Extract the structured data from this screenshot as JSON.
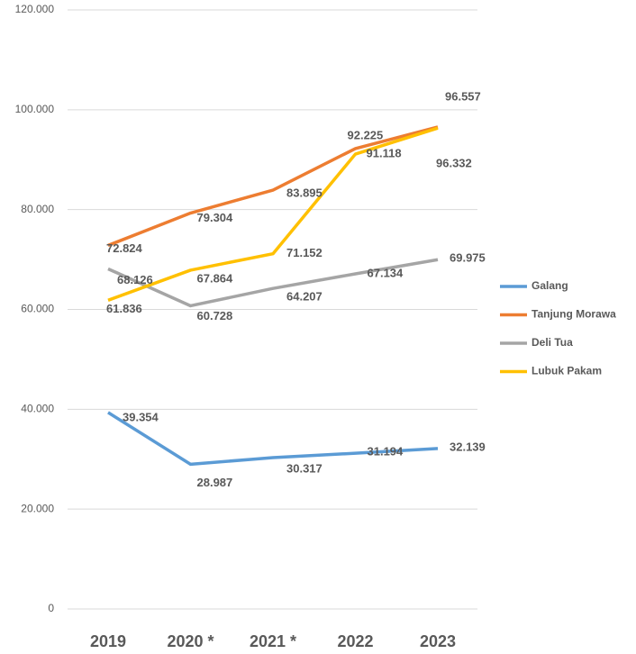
{
  "chart_data": {
    "type": "line",
    "categories": [
      "2019",
      "2020 *",
      "2021 *",
      "2022",
      "2023"
    ],
    "series": [
      {
        "name": "Galang",
        "color": "#5b9bd5",
        "values": [
          39354,
          28987,
          30317,
          31194,
          32139
        ],
        "value_labels": [
          "39.354",
          "28.987",
          "30.317",
          "31.194",
          "32.139"
        ]
      },
      {
        "name": "Tanjung Morawa",
        "color": "#ed7d31",
        "values": [
          72824,
          79304,
          83895,
          92225,
          96557
        ],
        "value_labels": [
          "72.824",
          "79.304",
          "83.895",
          "92.225",
          "96.557"
        ]
      },
      {
        "name": "Deli Tua",
        "color": "#a5a5a5",
        "values": [
          68126,
          60728,
          64207,
          67134,
          69975
        ],
        "value_labels": [
          "68.126",
          "60.728",
          "64.207",
          "67.134",
          "69.975"
        ]
      },
      {
        "name": "Lubuk Pakam",
        "color": "#ffc000",
        "values": [
          61836,
          67864,
          71152,
          91118,
          96332
        ],
        "value_labels": [
          "61.836",
          "67.864",
          "71.152",
          "91.118",
          "96.332"
        ]
      }
    ],
    "ylim": [
      0,
      120000
    ],
    "yticks": [
      0,
      {
        "value": 20000,
        "label": "20.000"
      },
      {
        "value": 40000,
        "label": "40.000"
      },
      {
        "value": 60000,
        "label": "60.000"
      },
      {
        "value": 80000,
        "label": "80.000"
      },
      {
        "value": 100000,
        "label": "100.000"
      },
      {
        "value": 120000,
        "label": "120.000"
      }
    ],
    "grid": true,
    "legend": "right"
  }
}
